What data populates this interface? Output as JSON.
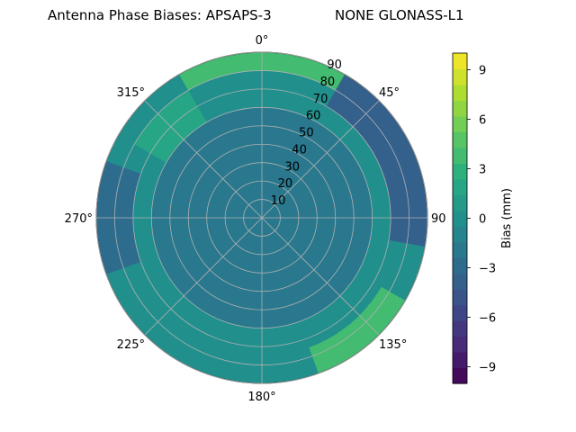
{
  "title": {
    "left": "Antenna Phase Biases: APSAPS-3",
    "right": "NONE GLONASS-L1"
  },
  "chart_data": {
    "type": "heatmap",
    "projection": "polar",
    "theta_direction": "clockwise",
    "theta_zero": "top",
    "angular_ticks": [
      "0°",
      "45°",
      "90",
      "135°",
      "180°",
      "225°",
      "270°",
      "315°"
    ],
    "radial_ticks": [
      "10",
      "20",
      "30",
      "40",
      "50",
      "60",
      "70",
      "80",
      "90"
    ],
    "radial_range": [
      0,
      90
    ],
    "grid": true,
    "colorbar": {
      "label": "Bias (mm)",
      "range": [
        -10,
        10
      ],
      "ticks": [
        "−9",
        "−6",
        "−3",
        "0",
        "3",
        "6",
        "9"
      ],
      "tick_values": [
        -9,
        -6,
        -3,
        0,
        3,
        6,
        9
      ],
      "levels": 21,
      "colormap": "viridis"
    },
    "regions": [
      {
        "zenith": [
          0,
          60
        ],
        "azimuth": [
          0,
          360
        ],
        "bias": -1.5
      },
      {
        "zenith": [
          80,
          90
        ],
        "azimuth": [
          330,
          40
        ],
        "bias": 3.5
      },
      {
        "zenith": [
          70,
          90
        ],
        "azimuth": [
          30,
          100
        ],
        "bias": -4
      },
      {
        "zenith": [
          75,
          90
        ],
        "azimuth": [
          120,
          160
        ],
        "bias": 4
      },
      {
        "zenith": [
          70,
          90
        ],
        "azimuth": [
          250,
          290
        ],
        "bias": -3
      },
      {
        "zenith": [
          60,
          80
        ],
        "azimuth": [
          300,
          330
        ],
        "bias": 2
      }
    ]
  }
}
